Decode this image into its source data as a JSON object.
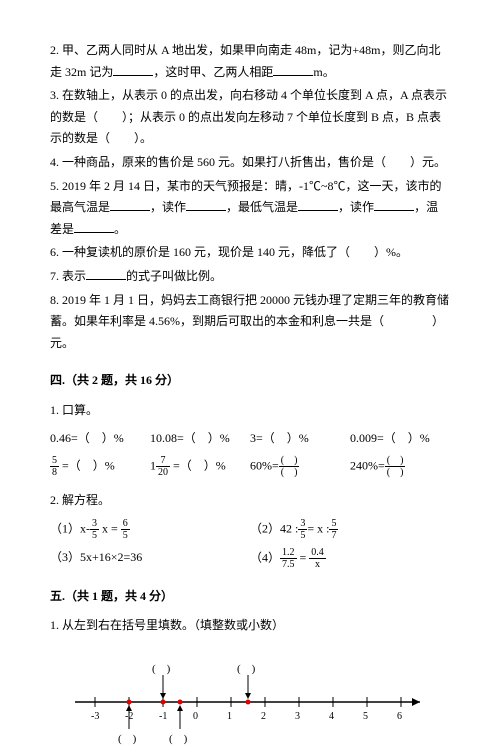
{
  "q2": "2. 甲、乙两人同时从 A 地出发，如果甲向南走 48m，记为+48m，则乙向北走 32m 记为",
  "q2b": "，这时甲、乙两人相距",
  "q2c": "m。",
  "q3": "3. 在数轴上，从表示 0 的点出发，向右移动 4 个单位长度到 A 点，A 点表示的数是（　　）；从表示 0 的点出发向左移动 7 个单位长度到 B 点，B 点表示的数是（　　）。",
  "q4": "4. 一种商品，原来的售价是 560 元。如果打八折售出，售价是（　　）元。",
  "q5a": "5. 2019 年 2 月 14 日，某市的天气预报是：晴，-1℃~8℃，这一天，该市的最高气温是",
  "q5b": "，读作",
  "q5c": "，最低气温是",
  "q5d": "，读作",
  "q5e": "，温差是",
  "q5f": "。",
  "q6": "6. 一种复读机的原价是 160 元，现价是 140 元，降低了（　　）%。",
  "q7a": "7. 表示",
  "q7b": "的式子叫做比例。",
  "q8": "8. 2019 年 1 月 1 日，妈妈去工商银行把 20000 元钱办理了定期三年的教育储蓄。如果年利率是 4.56%，到期后可取出的本金和利息一共是（　　　　）元。",
  "sec4": "四.（共 2 题，共 16 分）",
  "s4q1": "1. 口算。",
  "r1c1": "0.46=（　）%",
  "r1c2": "10.08=（　）%",
  "r1c3": "3=（　）%",
  "r1c4": "0.009=（　）%",
  "r2c3": "60%=",
  "r2c4": "240%=",
  "s4q2": "2. 解方程。",
  "eq1a": "（1）x-",
  "eq2a": "（2）42 :",
  "eq2b": "= x :",
  "eq3": "（3）5x+16×2=36",
  "eq4a": "（4）",
  "sec5": "五.（共 1 题，共 4 分）",
  "s5q1": "1. 从左到右在括号里填数。（填整数或小数）",
  "ticks": [
    "-3",
    "-2",
    "-1",
    "0",
    "1",
    "2",
    "3",
    "4",
    "5",
    "6"
  ],
  "colors": {
    "tick": "#000",
    "mark": "#d00"
  }
}
